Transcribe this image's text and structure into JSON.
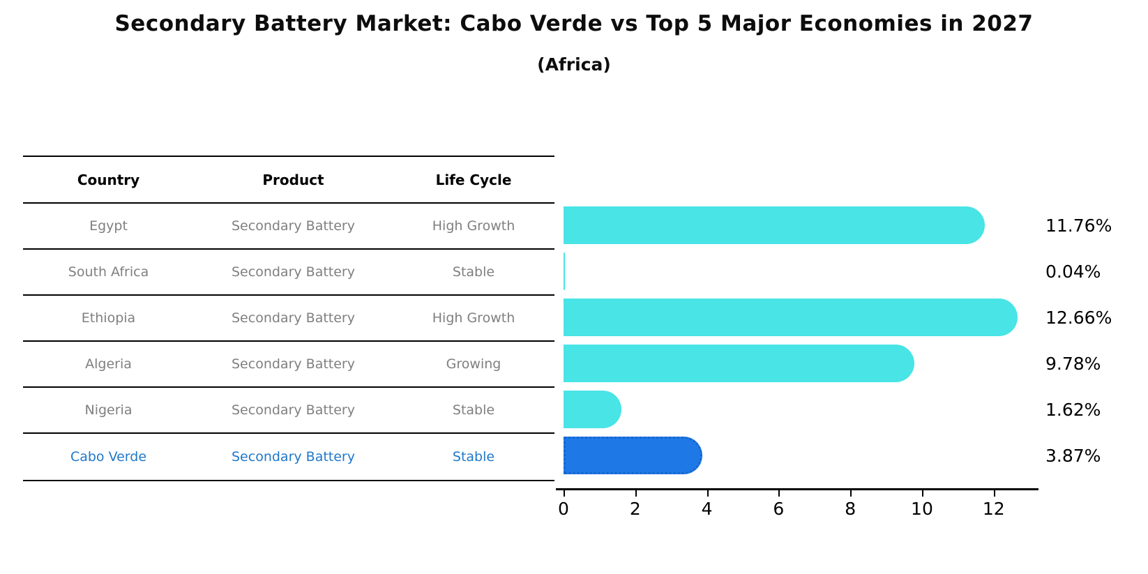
{
  "title": "Secondary Battery Market: Cabo Verde vs Top 5 Major Economies in 2027",
  "subtitle": "(Africa)",
  "table": {
    "headers": [
      "Country",
      "Product",
      "Life Cycle"
    ],
    "rows": [
      {
        "country": "Egypt",
        "product": "Secondary Battery",
        "life_cycle": "High Growth",
        "highlight": false
      },
      {
        "country": "South Africa",
        "product": "Secondary Battery",
        "life_cycle": "Stable",
        "highlight": false
      },
      {
        "country": "Ethiopia",
        "product": "Secondary Battery",
        "life_cycle": "High Growth",
        "highlight": false
      },
      {
        "country": "Algeria",
        "product": "Secondary Battery",
        "life_cycle": "Growing",
        "highlight": false
      },
      {
        "country": "Nigeria",
        "product": "Secondary Battery",
        "life_cycle": "Stable",
        "highlight": false
      },
      {
        "country": "Cabo Verde",
        "product": "Secondary Battery",
        "life_cycle": "Stable",
        "highlight": true
      }
    ]
  },
  "chart_data": {
    "type": "bar",
    "orientation": "horizontal",
    "title": "Secondary Battery Market: Cabo Verde vs Top 5 Major Economies in 2027",
    "subtitle": "(Africa)",
    "categories": [
      "Egypt",
      "South Africa",
      "Ethiopia",
      "Algeria",
      "Nigeria",
      "Cabo Verde"
    ],
    "values": [
      11.76,
      0.04,
      12.66,
      9.78,
      1.62,
      3.87
    ],
    "value_labels": [
      "11.76%",
      "0.04%",
      "12.66%",
      "9.78%",
      "1.62%",
      "3.87%"
    ],
    "xlabel": "",
    "ylabel": "",
    "xticks": [
      0,
      2,
      4,
      6,
      8,
      10,
      12
    ],
    "xlim": [
      0,
      13.25
    ],
    "grid": false,
    "legend": "none",
    "bar_color": "#48e4e6",
    "highlight_index": 5,
    "highlight_color": "#1e79e6",
    "highlight_border_color": "#1565d2",
    "highlight_text_color": "#1f78c9"
  },
  "colors": {
    "background": "#ffffff",
    "table_line": "#000000",
    "table_text": "#7f7f7f",
    "header_text": "#000000",
    "axis": "#000000"
  }
}
